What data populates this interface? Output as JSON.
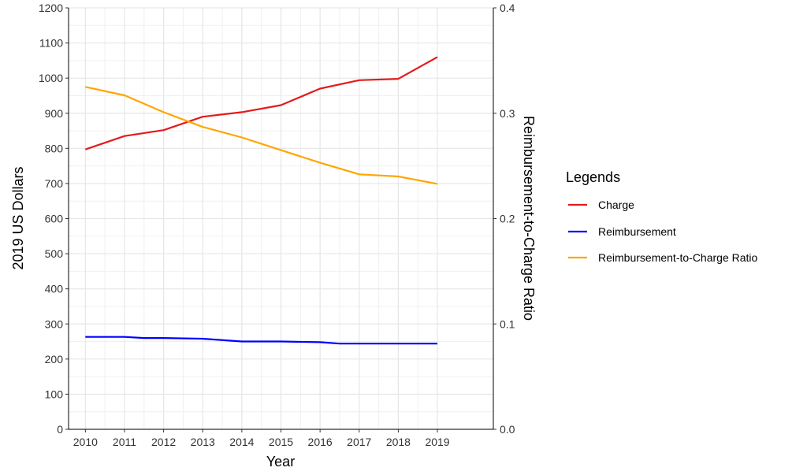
{
  "chart_data": {
    "type": "line",
    "x": [
      2010,
      2011,
      2012,
      2013,
      2014,
      2015,
      2016,
      2017,
      2018,
      2019
    ],
    "xlabel": "Year",
    "ylabel": "2019 US Dollars",
    "y2label": "Reimbursement-to-Charge Ratio",
    "ylim": [
      0,
      1200
    ],
    "y2lim": [
      0.0,
      0.4
    ],
    "yticks": [
      "0",
      "100",
      "200",
      "300",
      "400",
      "500",
      "600",
      "700",
      "800",
      "900",
      "1000",
      "1100",
      "1200"
    ],
    "y2ticks": [
      "0.0",
      "0.1",
      "0.2",
      "0.3",
      "0.4"
    ],
    "xticks": [
      "2010",
      "2011",
      "2012",
      "2013",
      "2014",
      "2015",
      "2016",
      "2017",
      "2018",
      "2019"
    ],
    "grid": true,
    "legend": {
      "title": "Legends",
      "position": "right",
      "entries": [
        "Charge",
        "Reimbursement",
        "Reimbursement-to-Charge Ratio"
      ]
    },
    "series": [
      {
        "name": "Charge",
        "axis": "left",
        "color": "#e41a1c",
        "points": [
          [
            2010,
            797
          ],
          [
            2011,
            835
          ],
          [
            2012,
            852
          ],
          [
            2013,
            890
          ],
          [
            2014,
            903
          ],
          [
            2015,
            923
          ],
          [
            2016,
            970
          ],
          [
            2017,
            994
          ],
          [
            2018,
            998
          ],
          [
            2019,
            1060
          ]
        ]
      },
      {
        "name": "Reimbursement",
        "axis": "left",
        "color": "#0000ff",
        "points": [
          [
            2010,
            263
          ],
          [
            2011,
            263
          ],
          [
            2011.5,
            260
          ],
          [
            2012,
            260
          ],
          [
            2013,
            258
          ],
          [
            2014,
            250
          ],
          [
            2015,
            250
          ],
          [
            2016,
            248
          ],
          [
            2016.5,
            244
          ],
          [
            2017,
            244
          ],
          [
            2018,
            244
          ],
          [
            2019,
            244
          ]
        ]
      },
      {
        "name": "Reimbursement-to-Charge Ratio",
        "axis": "right",
        "color": "#ffa500",
        "points": [
          [
            2010,
            0.325
          ],
          [
            2011,
            0.317
          ],
          [
            2012,
            0.301
          ],
          [
            2013,
            0.287
          ],
          [
            2014,
            0.277
          ],
          [
            2015,
            0.265
          ],
          [
            2016,
            0.253
          ],
          [
            2017,
            0.242
          ],
          [
            2018,
            0.24
          ],
          [
            2019,
            0.233
          ]
        ]
      }
    ]
  }
}
